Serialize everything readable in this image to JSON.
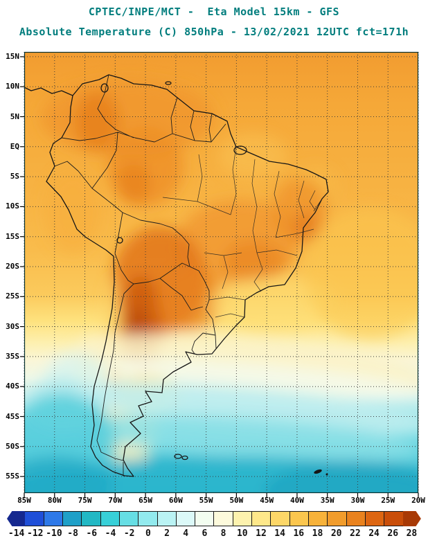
{
  "header": {
    "line1": "CPTEC/INPE/MCT -  Eta Model 15km - GFS",
    "line2": "Absolute Temperature (C) 850hPa - 13/02/2021 12UTC fct=171h",
    "color": "#007d7d"
  },
  "map": {
    "lat_labels": [
      "15N",
      "10N",
      "5N",
      "EQ",
      "5S",
      "10S",
      "15S",
      "20S",
      "25S",
      "30S",
      "35S",
      "40S",
      "45S",
      "50S",
      "55S"
    ],
    "lon_labels": [
      "85W",
      "80W",
      "75W",
      "70W",
      "65W",
      "60W",
      "55W",
      "50W",
      "45W",
      "40W",
      "35W",
      "30W",
      "25W",
      "20W"
    ]
  },
  "colorbar": {
    "unit": "C",
    "tick_labels": [
      "-14",
      "-12",
      "-10",
      "-8",
      "-6",
      "-4",
      "-2",
      "0",
      "2",
      "4",
      "6",
      "8",
      "10",
      "12",
      "14",
      "16",
      "18",
      "20",
      "22",
      "24",
      "26",
      "28"
    ],
    "colors": [
      "#15288F",
      "#1F4FD8",
      "#2E79E8",
      "#1FA0C8",
      "#22B8C4",
      "#38D0D8",
      "#66DEE4",
      "#92EAEE",
      "#BAF3F4",
      "#DCF9F8",
      "#F3FDF0",
      "#FDFADC",
      "#FDF2AE",
      "#FEE88A",
      "#FDD768",
      "#FBC64E",
      "#F7B23A",
      "#F19C2C",
      "#E9821E",
      "#DD6612",
      "#C94E0A",
      "#A83A06"
    ]
  }
}
